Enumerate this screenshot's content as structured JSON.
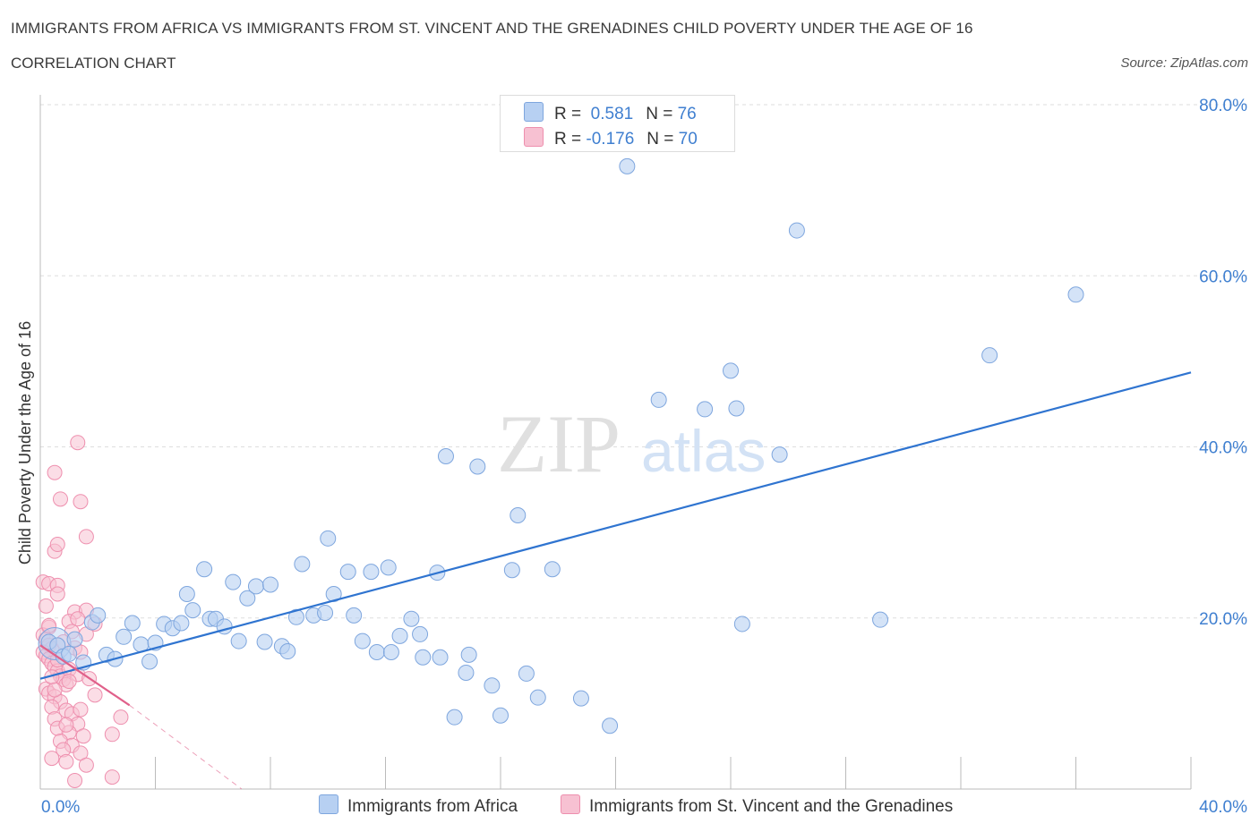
{
  "title": "IMMIGRANTS FROM AFRICA VS IMMIGRANTS FROM ST. VINCENT AND THE GRENADINES CHILD POVERTY UNDER THE AGE OF 16",
  "subtitle": "CORRELATION CHART",
  "source": "Source: ZipAtlas.com",
  "watermark": {
    "zip": "ZIP",
    "atlas": "atlas"
  },
  "legend": {
    "africa": {
      "r_label": "R =",
      "r_value": "0.581",
      "n_label": "N =",
      "n_value": "76"
    },
    "svg": {
      "r_label": "R =",
      "r_value": "-0.176",
      "n_label": "N =",
      "n_value": "70"
    }
  },
  "bottom_legend": {
    "africa": "Immigrants from Africa",
    "svg": "Immigrants from St. Vincent and the Grenadines"
  },
  "colors": {
    "africa_fill": "#b7d0f2",
    "africa_stroke": "#7ea6de",
    "africa_line": "#2f74d0",
    "svg_fill": "#f7c1d2",
    "svg_stroke": "#ee8fae",
    "svg_line": "#e0608a",
    "axis_text": "#3f7fd0",
    "grid": "#dddddd"
  },
  "chart_data": {
    "type": "scatter",
    "title": "IMMIGRANTS FROM AFRICA VS IMMIGRANTS FROM ST. VINCENT AND THE GRENADINES CHILD POVERTY UNDER THE AGE OF 16",
    "xlabel": "",
    "ylabel": "Child Poverty Under the Age of 16",
    "xlim": [
      0,
      40
    ],
    "ylim": [
      0,
      80
    ],
    "x_tick_labels": [
      "0.0%",
      "40.0%"
    ],
    "y_ticks": [
      20,
      40,
      60,
      80
    ],
    "y_tick_labels": [
      "20.0%",
      "40.0%",
      "60.0%",
      "80.0%"
    ],
    "series": [
      {
        "name": "Immigrants from Africa",
        "trend": {
          "x": [
            0,
            40
          ],
          "y": [
            12.9,
            48.7
          ]
        },
        "points": [
          [
            0.3,
            17.2
          ],
          [
            0.6,
            16.8
          ],
          [
            0.8,
            15.5
          ],
          [
            1.0,
            15.8
          ],
          [
            1.2,
            17.5
          ],
          [
            1.5,
            14.8
          ],
          [
            1.8,
            19.5
          ],
          [
            2.0,
            20.3
          ],
          [
            2.3,
            15.7
          ],
          [
            2.6,
            15.2
          ],
          [
            2.9,
            17.8
          ],
          [
            3.2,
            19.4
          ],
          [
            3.5,
            16.9
          ],
          [
            3.8,
            14.9
          ],
          [
            4.0,
            17.1
          ],
          [
            4.3,
            19.3
          ],
          [
            4.6,
            18.8
          ],
          [
            4.9,
            19.4
          ],
          [
            5.1,
            22.8
          ],
          [
            5.3,
            20.9
          ],
          [
            5.7,
            25.7
          ],
          [
            5.9,
            19.9
          ],
          [
            6.1,
            19.9
          ],
          [
            6.4,
            19.0
          ],
          [
            6.7,
            24.2
          ],
          [
            6.9,
            17.3
          ],
          [
            7.2,
            22.3
          ],
          [
            7.5,
            23.7
          ],
          [
            7.8,
            17.2
          ],
          [
            8.0,
            23.9
          ],
          [
            8.4,
            16.7
          ],
          [
            8.6,
            16.1
          ],
          [
            9.1,
            26.3
          ],
          [
            8.9,
            20.1
          ],
          [
            9.5,
            20.3
          ],
          [
            9.9,
            20.6
          ],
          [
            10.0,
            29.3
          ],
          [
            10.2,
            22.8
          ],
          [
            10.7,
            25.4
          ],
          [
            10.9,
            20.3
          ],
          [
            11.2,
            17.3
          ],
          [
            11.5,
            25.4
          ],
          [
            11.7,
            16.0
          ],
          [
            12.1,
            25.9
          ],
          [
            12.2,
            16.0
          ],
          [
            12.5,
            17.9
          ],
          [
            12.9,
            19.9
          ],
          [
            13.2,
            18.1
          ],
          [
            13.3,
            15.4
          ],
          [
            13.8,
            25.3
          ],
          [
            13.9,
            15.4
          ],
          [
            14.1,
            38.9
          ],
          [
            14.4,
            8.4
          ],
          [
            14.8,
            13.6
          ],
          [
            14.9,
            15.7
          ],
          [
            15.2,
            37.7
          ],
          [
            15.7,
            12.1
          ],
          [
            16.0,
            8.6
          ],
          [
            16.4,
            25.6
          ],
          [
            16.6,
            32.0
          ],
          [
            16.9,
            13.5
          ],
          [
            17.3,
            10.7
          ],
          [
            17.8,
            25.7
          ],
          [
            18.8,
            10.6
          ],
          [
            19.8,
            7.4
          ],
          [
            20.4,
            72.8
          ],
          [
            21.5,
            45.5
          ],
          [
            23.1,
            44.4
          ],
          [
            24.0,
            48.9
          ],
          [
            24.2,
            44.5
          ],
          [
            24.4,
            19.3
          ],
          [
            25.7,
            39.1
          ],
          [
            26.3,
            65.3
          ],
          [
            29.2,
            19.8
          ],
          [
            33.0,
            50.7
          ],
          [
            36.0,
            57.8
          ]
        ]
      },
      {
        "name": "Immigrants from St. Vincent and the Grenadines",
        "trend": {
          "x": [
            0,
            3.1
          ],
          "y": [
            16.8,
            9.8
          ]
        },
        "trend_extension": {
          "x": [
            3.1,
            7.0
          ],
          "y": [
            9.8,
            0
          ]
        },
        "points": [
          [
            0.1,
            24.2
          ],
          [
            0.2,
            21.4
          ],
          [
            0.3,
            18.9
          ],
          [
            0.1,
            18.0
          ],
          [
            0.2,
            17.5
          ],
          [
            0.3,
            16.8
          ],
          [
            0.4,
            16.4
          ],
          [
            0.1,
            16.0
          ],
          [
            0.2,
            15.6
          ],
          [
            0.3,
            15.2
          ],
          [
            0.4,
            14.7
          ],
          [
            0.5,
            14.3
          ],
          [
            0.6,
            13.8
          ],
          [
            0.7,
            13.2
          ],
          [
            0.8,
            12.8
          ],
          [
            0.9,
            12.2
          ],
          [
            0.2,
            11.7
          ],
          [
            0.3,
            11.2
          ],
          [
            0.5,
            10.8
          ],
          [
            0.7,
            10.2
          ],
          [
            0.4,
            9.6
          ],
          [
            0.9,
            9.2
          ],
          [
            1.1,
            8.8
          ],
          [
            0.5,
            8.2
          ],
          [
            1.3,
            7.6
          ],
          [
            0.6,
            7.1
          ],
          [
            1.0,
            6.6
          ],
          [
            1.5,
            6.2
          ],
          [
            0.7,
            5.6
          ],
          [
            1.1,
            5.1
          ],
          [
            0.8,
            4.6
          ],
          [
            1.4,
            4.2
          ],
          [
            0.4,
            3.6
          ],
          [
            0.9,
            3.2
          ],
          [
            1.6,
            2.8
          ],
          [
            1.2,
            1.0
          ],
          [
            2.5,
            1.4
          ],
          [
            0.5,
            37.0
          ],
          [
            1.3,
            40.5
          ],
          [
            0.7,
            33.9
          ],
          [
            1.4,
            33.6
          ],
          [
            1.6,
            29.5
          ],
          [
            0.5,
            27.8
          ],
          [
            0.6,
            28.6
          ],
          [
            0.3,
            24.0
          ],
          [
            0.6,
            23.8
          ],
          [
            0.6,
            22.8
          ],
          [
            1.2,
            20.7
          ],
          [
            1.6,
            20.9
          ],
          [
            1.0,
            19.6
          ],
          [
            1.3,
            19.9
          ],
          [
            1.9,
            19.3
          ],
          [
            1.1,
            18.4
          ],
          [
            1.6,
            18.1
          ],
          [
            0.3,
            19.1
          ],
          [
            0.8,
            17.2
          ],
          [
            1.2,
            16.5
          ],
          [
            1.4,
            16.0
          ],
          [
            0.6,
            15.1
          ],
          [
            1.0,
            14.0
          ],
          [
            1.3,
            13.4
          ],
          [
            0.4,
            13.1
          ],
          [
            1.7,
            12.9
          ],
          [
            1.9,
            11.0
          ],
          [
            0.5,
            11.6
          ],
          [
            2.8,
            8.4
          ],
          [
            2.5,
            6.4
          ],
          [
            1.4,
            9.3
          ],
          [
            0.9,
            7.5
          ],
          [
            1.0,
            12.6
          ]
        ]
      }
    ]
  }
}
